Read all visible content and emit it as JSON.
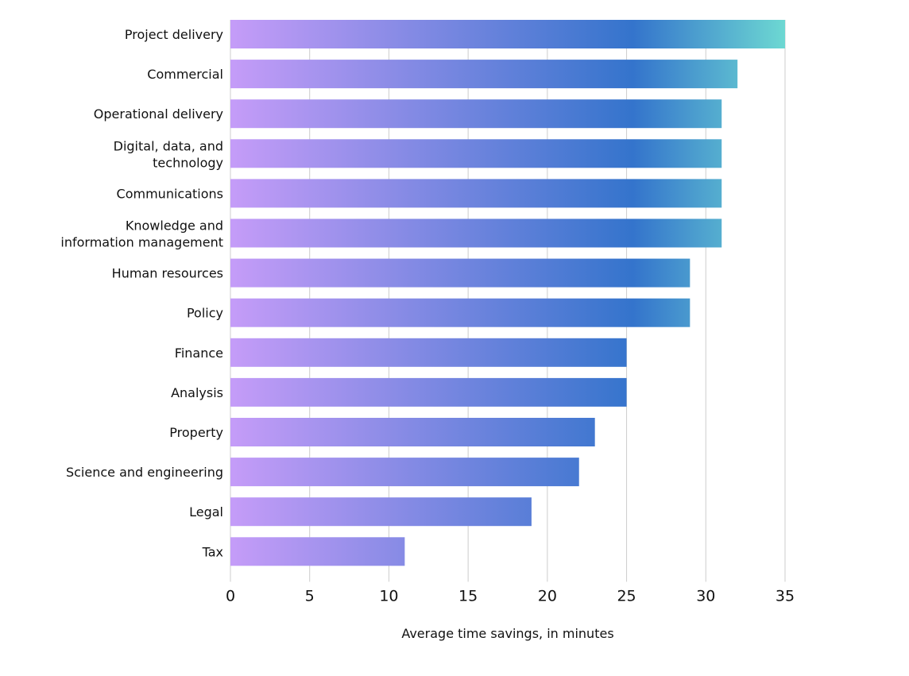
{
  "chart_data": {
    "type": "bar",
    "orientation": "horizontal",
    "title": "",
    "xlabel": "Average time savings, in minutes",
    "ylabel": "",
    "xlim": [
      0,
      35
    ],
    "xticks": [
      0,
      5,
      10,
      15,
      20,
      25,
      30,
      35
    ],
    "grid": "vertical",
    "categories": [
      "Project delivery",
      "Commercial",
      "Operational delivery",
      "Digital, data, and\ntechnology",
      "Communications",
      "Knowledge and\ninformation management",
      "Human resources",
      "Policy",
      "Finance",
      "Analysis",
      "Property",
      "Science and engineering",
      "Legal",
      "Tax"
    ],
    "values": [
      35,
      32,
      31,
      31,
      31,
      31,
      29,
      29,
      25,
      25,
      23,
      22,
      19,
      11
    ],
    "colors": {
      "gradient_start": "#c59cf8",
      "gradient_mid": "#3474cc",
      "gradient_end": "#6dd8d2",
      "grid": "#cccccc"
    }
  }
}
